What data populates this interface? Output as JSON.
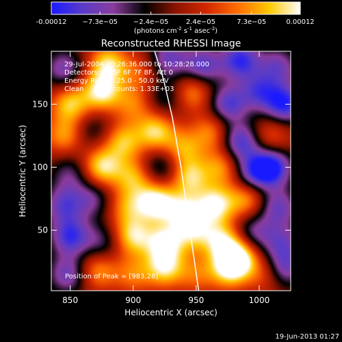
{
  "chart_data": {
    "type": "heatmap",
    "title": "Reconstructed RHESSI Image",
    "xlabel": "Heliocentric X (arcsec)",
    "ylabel": "Heliocentric Y (arcsec)",
    "xlim": [
      835,
      1025
    ],
    "ylim": [
      2,
      192
    ],
    "xticks": [
      850,
      900,
      950,
      1000
    ],
    "yticks": [
      50,
      100,
      150
    ],
    "colorbar": {
      "min": -0.00012,
      "max": 0.00012,
      "tick_labels": [
        "-0.00012",
        "−7.3e−05",
        "−2.4e−05",
        "2.4e−05",
        "7.3e−05",
        "0.00012"
      ],
      "tick_values": [
        -0.00012,
        -7.3e-05,
        -2.4e-05,
        2.4e-05,
        7.3e-05,
        0.00012
      ],
      "units_prefix": "(photons cm",
      "units_exp1": "-2",
      "units_mid": " s",
      "units_exp2": "-1",
      "units_mid2": " asec",
      "units_exp3": "-2",
      "units_suffix": ")",
      "colors": [
        "#1a1aff",
        "#5a3cc8",
        "#8a3c9c",
        "#000000",
        "#8c1400",
        "#d22800",
        "#ff6e00",
        "#ffc800",
        "#ffffff"
      ]
    },
    "annotations": [
      "29-Jul-2004 10:26:36.000 to 10:28:28.000",
      "Detectors: 4F 5F 6F 7F 8F, Att 0",
      "Energy Range: 25.0 - 50.0 keV",
      "Clean     Total counts: 1.33E+03"
    ],
    "peak_label": "Position of Peak = [983,28]",
    "peak": [
      983,
      28
    ],
    "limb_curve": {
      "x": [
        952,
        945,
        938,
        931,
        924,
        917
      ],
      "y": [
        2,
        50,
        100,
        140,
        170,
        192
      ]
    },
    "sources": [
      {
        "x": 845,
        "y": 178,
        "a": -0.55
      },
      {
        "x": 880,
        "y": 182,
        "a": 0.75
      },
      {
        "x": 905,
        "y": 175,
        "a": 0.35
      },
      {
        "x": 928,
        "y": 186,
        "a": -0.6
      },
      {
        "x": 955,
        "y": 180,
        "a": -0.7
      },
      {
        "x": 985,
        "y": 185,
        "a": -0.8
      },
      {
        "x": 1015,
        "y": 180,
        "a": -0.55
      },
      {
        "x": 850,
        "y": 150,
        "a": 0.7
      },
      {
        "x": 875,
        "y": 160,
        "a": 0.85
      },
      {
        "x": 900,
        "y": 150,
        "a": 0.45
      },
      {
        "x": 925,
        "y": 155,
        "a": -0.35
      },
      {
        "x": 948,
        "y": 160,
        "a": 0.55
      },
      {
        "x": 975,
        "y": 150,
        "a": -0.7
      },
      {
        "x": 1000,
        "y": 160,
        "a": -0.6
      },
      {
        "x": 1020,
        "y": 150,
        "a": -0.85
      },
      {
        "x": 845,
        "y": 125,
        "a": 0.55
      },
      {
        "x": 868,
        "y": 130,
        "a": -0.3
      },
      {
        "x": 892,
        "y": 120,
        "a": 0.65
      },
      {
        "x": 918,
        "y": 128,
        "a": 0.75
      },
      {
        "x": 940,
        "y": 115,
        "a": 0.55
      },
      {
        "x": 962,
        "y": 128,
        "a": 0.5
      },
      {
        "x": 985,
        "y": 120,
        "a": -0.75
      },
      {
        "x": 1010,
        "y": 125,
        "a": 0.4
      },
      {
        "x": 850,
        "y": 95,
        "a": -0.4
      },
      {
        "x": 875,
        "y": 100,
        "a": 0.8
      },
      {
        "x": 900,
        "y": 92,
        "a": 0.6
      },
      {
        "x": 922,
        "y": 100,
        "a": -0.45
      },
      {
        "x": 945,
        "y": 92,
        "a": 0.7
      },
      {
        "x": 970,
        "y": 100,
        "a": 0.55
      },
      {
        "x": 995,
        "y": 95,
        "a": -0.65
      },
      {
        "x": 1010,
        "y": 100,
        "a": -0.9
      },
      {
        "x": 845,
        "y": 70,
        "a": -0.6
      },
      {
        "x": 868,
        "y": 75,
        "a": -0.45
      },
      {
        "x": 895,
        "y": 68,
        "a": 0.5
      },
      {
        "x": 918,
        "y": 72,
        "a": 0.95
      },
      {
        "x": 940,
        "y": 65,
        "a": 0.7
      },
      {
        "x": 965,
        "y": 70,
        "a": 0.85
      },
      {
        "x": 990,
        "y": 75,
        "a": 0.6
      },
      {
        "x": 1015,
        "y": 68,
        "a": -0.6
      },
      {
        "x": 850,
        "y": 45,
        "a": -0.75
      },
      {
        "x": 875,
        "y": 40,
        "a": -0.4
      },
      {
        "x": 900,
        "y": 45,
        "a": 0.75
      },
      {
        "x": 925,
        "y": 40,
        "a": 0.8
      },
      {
        "x": 948,
        "y": 48,
        "a": 0.6
      },
      {
        "x": 970,
        "y": 42,
        "a": 0.7
      },
      {
        "x": 995,
        "y": 48,
        "a": -0.5
      },
      {
        "x": 1018,
        "y": 40,
        "a": -0.5
      },
      {
        "x": 848,
        "y": 15,
        "a": -0.6
      },
      {
        "x": 872,
        "y": 18,
        "a": 0.55
      },
      {
        "x": 900,
        "y": 15,
        "a": 0.45
      },
      {
        "x": 925,
        "y": 20,
        "a": 0.75
      },
      {
        "x": 950,
        "y": 15,
        "a": 0.4
      },
      {
        "x": 975,
        "y": 18,
        "a": 0.6
      },
      {
        "x": 983,
        "y": 28,
        "a": 1.0
      },
      {
        "x": 1005,
        "y": 15,
        "a": 0.35
      },
      {
        "x": 1020,
        "y": 20,
        "a": -0.6
      }
    ]
  },
  "footer": {
    "date": "19-Jun-2013 01:27"
  }
}
